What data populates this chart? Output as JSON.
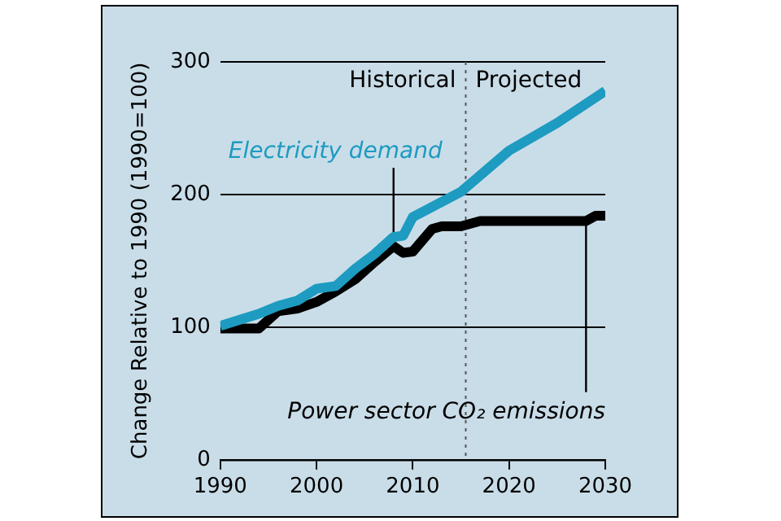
{
  "chart_data": {
    "type": "line",
    "ylabel": "Change Relative to 1990 (1990=100)",
    "xlim": [
      1990,
      2030
    ],
    "xticks": [
      1990,
      2000,
      2010,
      2020,
      2030
    ],
    "ylim": [
      0,
      300
    ],
    "yticks": [
      0,
      100,
      200,
      300
    ],
    "grid": "y",
    "legend": false,
    "marker": "none",
    "line_style": "solid",
    "series": [
      {
        "name": "Electricity demand",
        "color": "#1e9bc0",
        "x": [
          1990,
          1994,
          1996,
          1998,
          2000,
          2002,
          2004,
          2006,
          2008,
          2009,
          2010,
          2015,
          2020,
          2025,
          2030
        ],
        "values": [
          101,
          110,
          116,
          120,
          129,
          131,
          144,
          155,
          168,
          169,
          183,
          202,
          233,
          254,
          278
        ]
      },
      {
        "name": "Power sector CO₂ emissions",
        "color": "#000000",
        "x": [
          1990,
          1994,
          1996,
          1998,
          2000,
          2002,
          2004,
          2006,
          2008,
          2009,
          2010,
          2012,
          2013,
          2015,
          2017,
          2028,
          2029,
          2030
        ],
        "values": [
          99,
          99,
          112,
          114,
          119,
          127,
          136,
          149,
          161,
          156,
          157,
          174,
          176,
          176,
          180,
          180,
          184,
          184
        ]
      }
    ],
    "ref_lines": [
      {
        "axis": "x",
        "value": 2015.5,
        "color": "#555555",
        "line_style": "dotted"
      }
    ],
    "annotations": [
      "Historical",
      "Projected"
    ]
  }
}
